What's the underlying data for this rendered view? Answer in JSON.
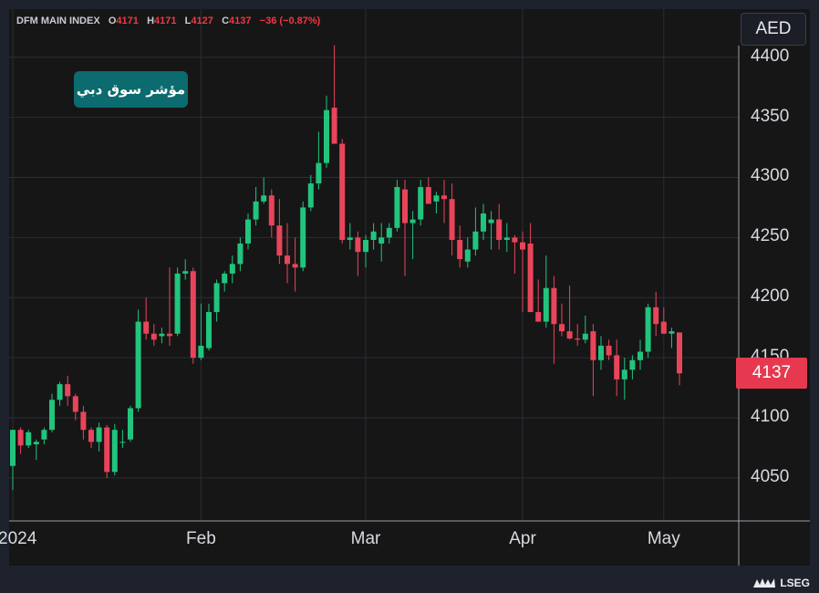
{
  "header": {
    "symbol": "DFM MAIN INDEX",
    "open_label": "O",
    "open": "4171",
    "high_label": "H",
    "high": "4171",
    "low_label": "L",
    "low": "4127",
    "close_label": "C",
    "close": "4137",
    "change": "−36 (−0.87%)"
  },
  "currency": "AED",
  "badge_text": "مؤشر سوق دبي",
  "logo_text": "LSEG",
  "colors": {
    "up": "#22c47d",
    "down": "#e8455a",
    "background": "#161616",
    "grid": "#2a2e39"
  },
  "chart_data": {
    "type": "candlestick",
    "title": "",
    "xlabel": "",
    "ylabel": "",
    "ylim": [
      4015,
      4440
    ],
    "yticks": [
      "4050",
      "4100",
      "4150",
      "4200",
      "4250",
      "4300",
      "4350",
      "4400"
    ],
    "xticks": [
      {
        "label": "2024",
        "index": 0
      },
      {
        "label": "Feb",
        "index": 24
      },
      {
        "label": "Mar",
        "index": 45
      },
      {
        "label": "Apr",
        "index": 65
      },
      {
        "label": "May",
        "index": 83
      }
    ],
    "last_price": "4137",
    "candles": [
      [
        4060,
        4090,
        4040,
        4090
      ],
      [
        4090,
        4092,
        4070,
        4077
      ],
      [
        4077,
        4090,
        4075,
        4088
      ],
      [
        4078,
        4082,
        4065,
        4080
      ],
      [
        4082,
        4092,
        4078,
        4090
      ],
      [
        4090,
        4120,
        4088,
        4115
      ],
      [
        4115,
        4130,
        4110,
        4128
      ],
      [
        4128,
        4135,
        4110,
        4118
      ],
      [
        4118,
        4120,
        4098,
        4105
      ],
      [
        4105,
        4110,
        4082,
        4090
      ],
      [
        4090,
        4092,
        4075,
        4080
      ],
      [
        4080,
        4096,
        4072,
        4092
      ],
      [
        4092,
        4094,
        4050,
        4055
      ],
      [
        4055,
        4095,
        4052,
        4090
      ],
      [
        4080,
        4090,
        4075,
        4080
      ],
      [
        4082,
        4110,
        4080,
        4108
      ],
      [
        4108,
        4190,
        4105,
        4180
      ],
      [
        4180,
        4200,
        4165,
        4170
      ],
      [
        4170,
        4178,
        4160,
        4165
      ],
      [
        4168,
        4175,
        4162,
        4170
      ],
      [
        4170,
        4225,
        4160,
        4168
      ],
      [
        4170,
        4225,
        4168,
        4220
      ],
      [
        4220,
        4232,
        4215,
        4222
      ],
      [
        4222,
        4225,
        4145,
        4150
      ],
      [
        4150,
        4195,
        4148,
        4160
      ],
      [
        4158,
        4195,
        4156,
        4188
      ],
      [
        4188,
        4215,
        4180,
        4212
      ],
      [
        4212,
        4222,
        4205,
        4220
      ],
      [
        4220,
        4235,
        4212,
        4228
      ],
      [
        4228,
        4250,
        4222,
        4245
      ],
      [
        4245,
        4270,
        4240,
        4265
      ],
      [
        4265,
        4292,
        4260,
        4280
      ],
      [
        4280,
        4300,
        4278,
        4285
      ],
      [
        4285,
        4290,
        4250,
        4260
      ],
      [
        4260,
        4282,
        4228,
        4235
      ],
      [
        4235,
        4262,
        4212,
        4228
      ],
      [
        4228,
        4250,
        4205,
        4225
      ],
      [
        4225,
        4280,
        4222,
        4275
      ],
      [
        4275,
        4302,
        4272,
        4295
      ],
      [
        4295,
        4338,
        4290,
        4312
      ],
      [
        4312,
        4368,
        4308,
        4356
      ],
      [
        4358,
        4410,
        4328,
        4328
      ],
      [
        4328,
        4332,
        4245,
        4248
      ],
      [
        4248,
        4262,
        4240,
        4250
      ],
      [
        4250,
        4255,
        4218,
        4238
      ],
      [
        4238,
        4252,
        4225,
        4248
      ],
      [
        4248,
        4262,
        4240,
        4255
      ],
      [
        4245,
        4262,
        4230,
        4250
      ],
      [
        4250,
        4262,
        4245,
        4258
      ],
      [
        4258,
        4298,
        4255,
        4292
      ],
      [
        4290,
        4298,
        4218,
        4262
      ],
      [
        4262,
        4272,
        4232,
        4265
      ],
      [
        4265,
        4298,
        4260,
        4292
      ],
      [
        4292,
        4300,
        4280,
        4278
      ],
      [
        4280,
        4288,
        4270,
        4285
      ],
      [
        4285,
        4298,
        4262,
        4282
      ],
      [
        4282,
        4295,
        4235,
        4248
      ],
      [
        4248,
        4260,
        4225,
        4232
      ],
      [
        4230,
        4250,
        4225,
        4240
      ],
      [
        4240,
        4275,
        4235,
        4255
      ],
      [
        4255,
        4278,
        4248,
        4270
      ],
      [
        4262,
        4272,
        4240,
        4265
      ],
      [
        4265,
        4278,
        4240,
        4248
      ],
      [
        4248,
        4262,
        4238,
        4250
      ],
      [
        4250,
        4252,
        4220,
        4246
      ],
      [
        4246,
        4255,
        4188,
        4240
      ],
      [
        4245,
        4262,
        4188,
        4188
      ],
      [
        4188,
        4215,
        4180,
        4180
      ],
      [
        4180,
        4235,
        4175,
        4208
      ],
      [
        4208,
        4218,
        4145,
        4178
      ],
      [
        4178,
        4195,
        4168,
        4172
      ],
      [
        4172,
        4210,
        4165,
        4166
      ],
      [
        4166,
        4178,
        4160,
        4165
      ],
      [
        4165,
        4185,
        4162,
        4170
      ],
      [
        4172,
        4178,
        4118,
        4148
      ],
      [
        4148,
        4168,
        4140,
        4160
      ],
      [
        4160,
        4165,
        4148,
        4152
      ],
      [
        4152,
        4165,
        4118,
        4132
      ],
      [
        4132,
        4150,
        4115,
        4140
      ],
      [
        4140,
        4152,
        4132,
        4148
      ],
      [
        4148,
        4165,
        4140,
        4155
      ],
      [
        4155,
        4195,
        4150,
        4192
      ],
      [
        4192,
        4205,
        4168,
        4178
      ],
      [
        4180,
        4192,
        4170,
        4170
      ],
      [
        4170,
        4175,
        4158,
        4172
      ],
      [
        4171,
        4171,
        4127,
        4137
      ]
    ]
  }
}
